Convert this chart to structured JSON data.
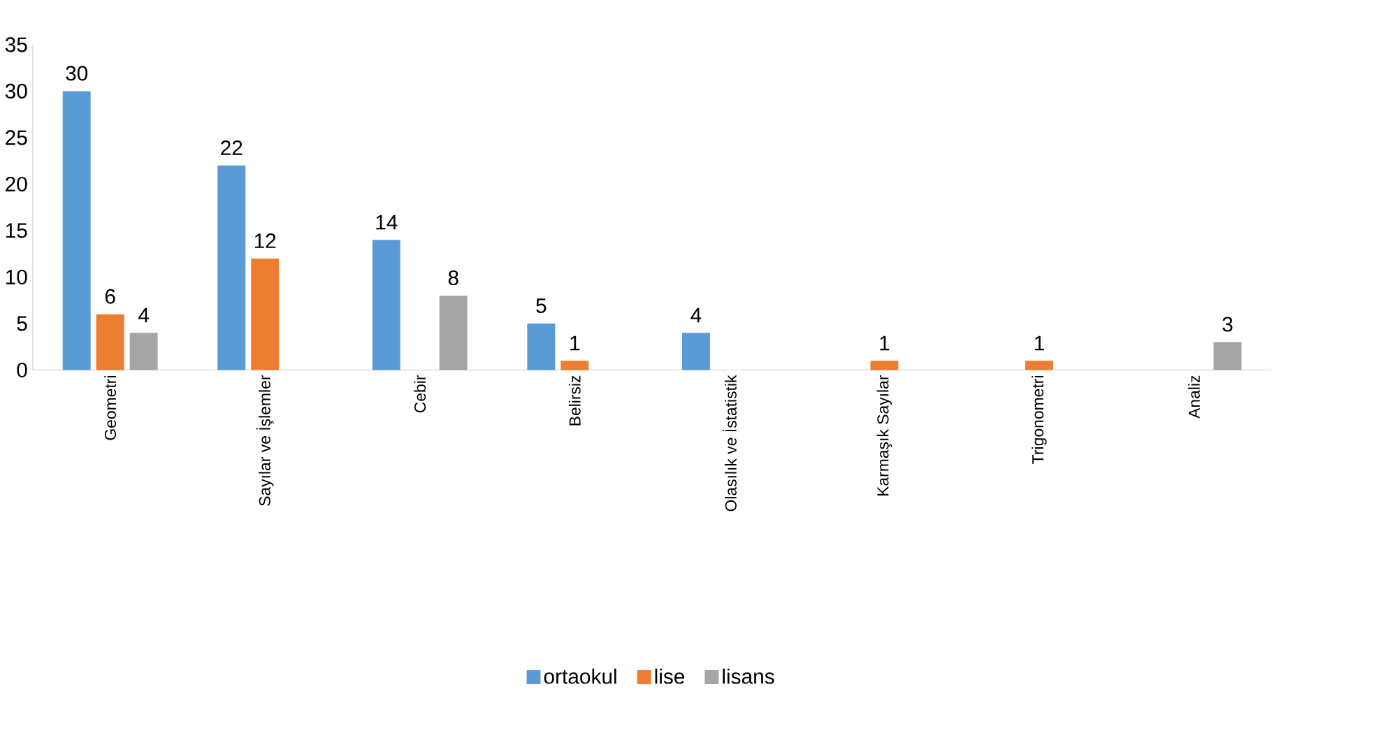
{
  "chart_data": {
    "type": "bar",
    "categories": [
      "Geometri",
      "Sayılar ve İşlemler",
      "Cebir",
      "Belirsiz",
      "Olasılık ve İstatistik",
      "Karmaşık Sayılar",
      "Trigonometri",
      "Analiz"
    ],
    "series": [
      {
        "name": "ortaokul",
        "color": "#5b9bd5",
        "values": [
          30,
          22,
          14,
          5,
          4,
          null,
          null,
          null
        ],
        "value_labels": [
          "30",
          "22",
          "14",
          "5",
          "4",
          null,
          null,
          null
        ]
      },
      {
        "name": "lise",
        "color": "#ed7d31",
        "values": [
          6,
          12,
          null,
          1,
          null,
          1,
          1,
          null
        ],
        "value_labels": [
          "6",
          "12",
          null,
          "1",
          null,
          "1",
          "1",
          null
        ]
      },
      {
        "name": "lisans",
        "color": "#a5a5a5",
        "values": [
          4,
          null,
          8,
          null,
          null,
          null,
          null,
          3
        ],
        "value_labels": [
          "4",
          null,
          "8",
          null,
          null,
          null,
          null,
          "3"
        ]
      }
    ],
    "ylim": [
      0,
      35
    ],
    "yticks": [
      0,
      5,
      10,
      15,
      20,
      25,
      30,
      35
    ],
    "grid": false,
    "legend": "bottom"
  }
}
